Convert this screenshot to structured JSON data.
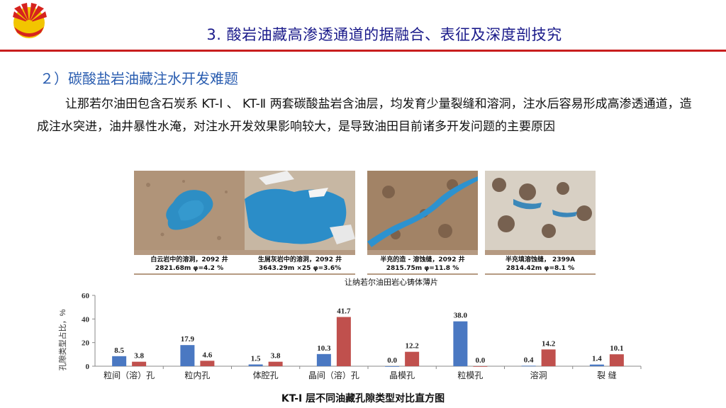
{
  "header": {
    "title": "3. 酸岩油藏高渗透通道的据融合、表征及深度剖技究",
    "accent_color": "#c81e1e",
    "title_color": "#1a1a8a"
  },
  "logo": {
    "icon": "company-logo-icon"
  },
  "section": {
    "title": "２）碳酸盐岩油藏注水开发难题",
    "body": "让那若尔油田包含石炭系 KT-Ⅰ 、 KT-Ⅱ 两套碳酸盐岩含油层，均发育少量裂缝和溶洞，注水后容易形成高渗透通道，造成注水突进，油井暴性水淹，对注水开发效果影响较大，是导致油田目前诸多开发问题的主要原因"
  },
  "photos": {
    "group_label": "让纳若尔油田岩心铸体薄片",
    "items": [
      {
        "caption": "白云岩中的溶洞，2092 井\n2821.68m φ=4.2 %"
      },
      {
        "caption": "生屑灰岩中的溶洞，2092 井\n3643.29m ×25 φ=3.6%"
      },
      {
        "caption": "半充的造 - 溶蚀缝，2092 井\n2815.75m φ=11.8 %"
      },
      {
        "caption": "半充填溶蚀缝， 2399A\n2814.42m  φ=8.1 %"
      }
    ]
  },
  "chart_data": {
    "type": "bar",
    "title": "KT-Ⅰ 层不同油藏孔隙类型对比直方图",
    "ylabel": "孔隙类型占比，%",
    "xlabel": "",
    "ylim": [
      0,
      60
    ],
    "yticks": [
      0,
      20,
      40,
      60
    ],
    "categories": [
      "粒间（溶）孔",
      "粒内孔",
      "体腔孔",
      "晶间（溶）孔",
      "晶模孔",
      "粒模孔",
      "溶洞",
      "裂 缝"
    ],
    "series": [
      {
        "values": [
          8.5,
          17.9,
          1.5,
          10.3,
          0.0,
          38.0,
          0.4,
          1.4
        ],
        "color": "#4a78c2"
      },
      {
        "values": [
          3.8,
          4.6,
          3.8,
          41.7,
          12.2,
          0.0,
          14.2,
          10.1
        ],
        "color": "#c0504d"
      }
    ],
    "grid": false
  }
}
